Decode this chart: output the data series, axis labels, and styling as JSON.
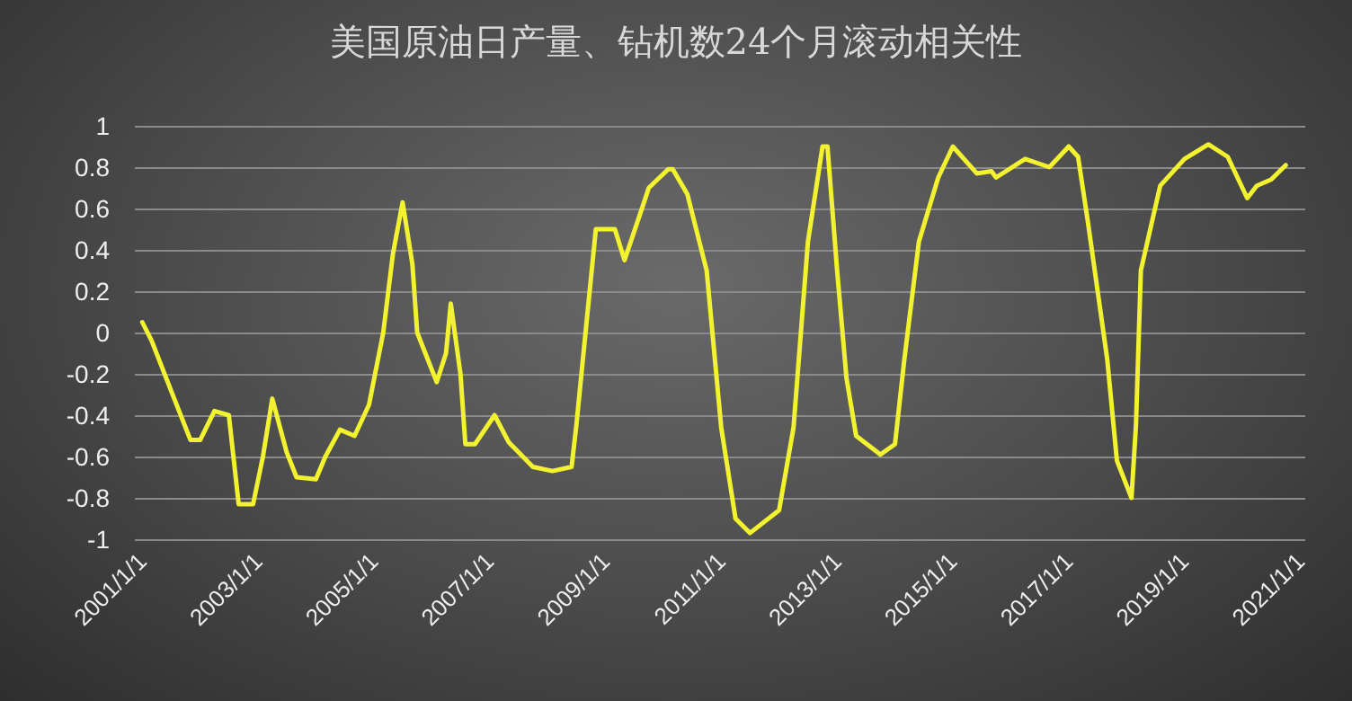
{
  "chart_data": {
    "type": "line",
    "title": "美国原油日产量、钻机数24个月滚动相关性",
    "x": [
      "2001-01",
      "2001-03",
      "2001-07",
      "2001-11",
      "2002-01",
      "2002-04",
      "2002-07",
      "2002-09",
      "2002-12",
      "2003-02",
      "2003-04",
      "2003-07",
      "2003-09",
      "2004-01",
      "2004-03",
      "2004-06",
      "2004-09",
      "2004-12",
      "2005-03",
      "2005-05",
      "2005-07",
      "2005-09",
      "2005-10",
      "2006-02",
      "2006-04",
      "2006-05",
      "2006-07",
      "2006-08",
      "2006-10",
      "2007-02",
      "2007-05",
      "2007-10",
      "2008-02",
      "2008-06",
      "2008-07",
      "2008-09",
      "2008-11",
      "2009-03",
      "2009-05",
      "2009-09",
      "2009-10",
      "2010-02",
      "2010-03",
      "2010-06",
      "2010-10",
      "2011-01",
      "2011-04",
      "2011-07",
      "2012-01",
      "2012-04",
      "2012-07",
      "2012-10",
      "2012-11",
      "2013-01",
      "2013-03",
      "2013-05",
      "2013-10",
      "2014-01",
      "2014-03",
      "2014-06",
      "2014-10",
      "2015-01",
      "2015-06",
      "2015-09",
      "2015-10",
      "2016-04",
      "2016-09",
      "2017-01",
      "2017-03",
      "2017-05",
      "2017-09",
      "2017-11",
      "2018-02",
      "2018-03",
      "2018-04",
      "2018-08",
      "2019-01",
      "2019-06",
      "2019-10",
      "2020-02",
      "2020-04",
      "2020-07",
      "2020-10"
    ],
    "series": [
      {
        "color": "#f2f230",
        "values": [
          0.05,
          -0.04,
          -0.28,
          -0.52,
          -0.52,
          -0.38,
          -0.4,
          -0.83,
          -0.83,
          -0.6,
          -0.32,
          -0.58,
          -0.7,
          -0.71,
          -0.6,
          -0.47,
          -0.5,
          -0.35,
          0,
          0.38,
          0.63,
          0.33,
          0,
          -0.24,
          -0.1,
          0.14,
          -0.2,
          -0.54,
          -0.54,
          -0.4,
          -0.53,
          -0.65,
          -0.67,
          -0.65,
          -0.45,
          0.03,
          0.5,
          0.5,
          0.35,
          0.63,
          0.7,
          0.79,
          0.79,
          0.67,
          0.3,
          -0.46,
          -0.9,
          -0.97,
          -0.86,
          -0.46,
          0.44,
          0.9,
          0.9,
          0.3,
          -0.22,
          -0.5,
          -0.59,
          -0.54,
          -0.13,
          0.44,
          0.75,
          0.9,
          0.77,
          0.78,
          0.75,
          0.84,
          0.8,
          0.9,
          0.85,
          0.54,
          -0.13,
          -0.62,
          -0.8,
          -0.45,
          0.3,
          0.71,
          0.84,
          0.91,
          0.85,
          0.65,
          0.71,
          0.74,
          0.81
        ]
      }
    ],
    "xlim": [
      "2000-11-15",
      "2021-02-01"
    ],
    "xticks": [
      {
        "value": "2001-01-01",
        "label": "2001/1/1"
      },
      {
        "value": "2003-01-01",
        "label": "2003/1/1"
      },
      {
        "value": "2005-01-01",
        "label": "2005/1/1"
      },
      {
        "value": "2007-01-01",
        "label": "2007/1/1"
      },
      {
        "value": "2009-01-01",
        "label": "2009/1/1"
      },
      {
        "value": "2011-01-01",
        "label": "2011/1/1"
      },
      {
        "value": "2013-01-01",
        "label": "2013/1/1"
      },
      {
        "value": "2015-01-01",
        "label": "2015/1/1"
      },
      {
        "value": "2017-01-01",
        "label": "2017/1/1"
      },
      {
        "value": "2019-01-01",
        "label": "2019/1/1"
      },
      {
        "value": "2021-01-01",
        "label": "2021/1/1"
      }
    ],
    "ylim": [
      -1,
      1
    ],
    "yticks": [
      -1,
      -0.8,
      -0.6,
      -0.4,
      -0.2,
      0,
      0.2,
      0.4,
      0.6,
      0.8,
      1
    ],
    "grid": "y",
    "marker": "none",
    "line_style": "solid"
  }
}
